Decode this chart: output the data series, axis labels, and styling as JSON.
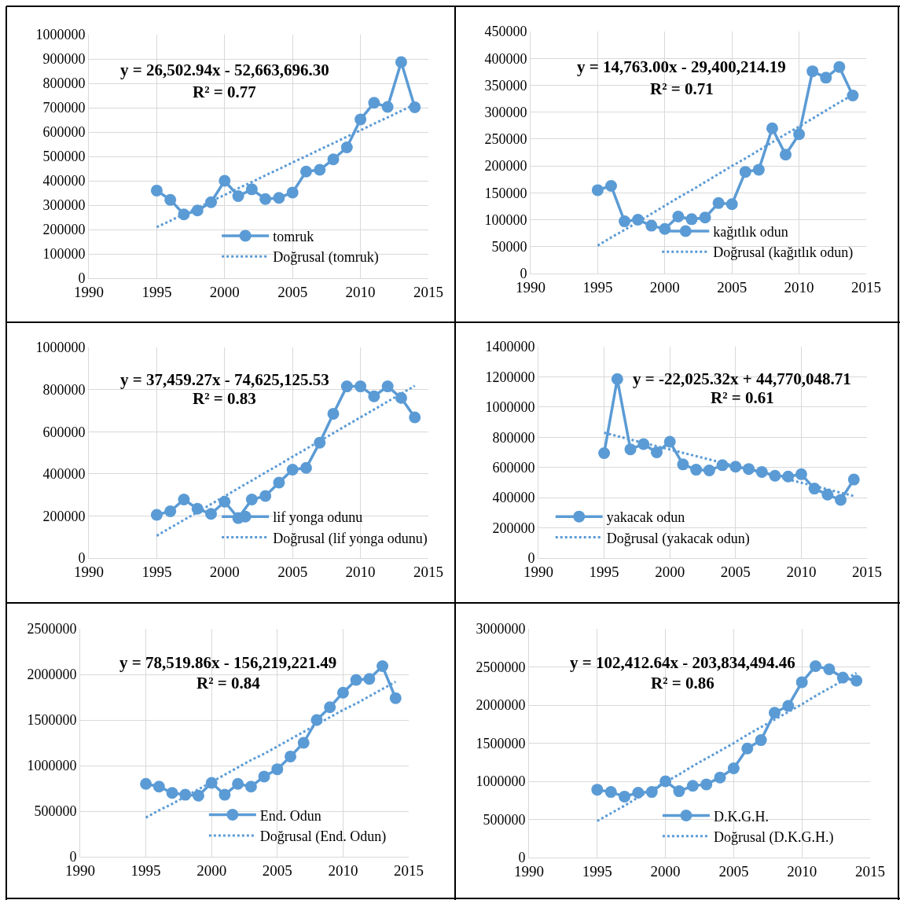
{
  "chart_data": [
    {
      "type": "line",
      "x": [
        1995,
        1996,
        1997,
        1998,
        1999,
        2000,
        2001,
        2002,
        2003,
        2004,
        2005,
        2006,
        2007,
        2008,
        2009,
        2010,
        2011,
        2012,
        2013,
        2014
      ],
      "xlim": [
        1990,
        2015
      ],
      "xticks": [
        1990,
        1995,
        2000,
        2005,
        2010,
        2015
      ],
      "ylim": [
        0,
        1000000
      ],
      "yticks": [
        0,
        100000,
        200000,
        300000,
        400000,
        500000,
        600000,
        700000,
        800000,
        900000,
        1000000
      ],
      "grid": true,
      "legend": "bottom right",
      "annotations": [
        "y = 26,502.94x - 52,663,696.30",
        "R² = 0.77"
      ],
      "series": [
        {
          "name": "tomruk",
          "color": "#5b9bd5",
          "marker": "circle",
          "line_style": "solid",
          "values": [
            360000,
            322000,
            262000,
            278000,
            312000,
            400000,
            337000,
            365000,
            325000,
            330000,
            352000,
            438000,
            445000,
            488000,
            537000,
            652000,
            720000,
            703000,
            887000,
            702000
          ]
        },
        {
          "name": "Doğrusal (tomruk)",
          "color": "#5b9bd5",
          "marker": "none",
          "line_style": "dotted",
          "values": [
            210000,
            236000,
            263000,
            289000,
            316000,
            342000,
            369000,
            395000,
            422000,
            448000,
            475000,
            501000,
            528000,
            554000,
            581000,
            607000,
            634000,
            660000,
            687000,
            713000
          ]
        }
      ]
    },
    {
      "type": "line",
      "x": [
        1995,
        1996,
        1997,
        1998,
        1999,
        2000,
        2001,
        2002,
        2003,
        2004,
        2005,
        2006,
        2007,
        2008,
        2009,
        2010,
        2011,
        2012,
        2013,
        2014
      ],
      "xlim": [
        1990,
        2015
      ],
      "xticks": [
        1990,
        1995,
        2000,
        2005,
        2010,
        2015
      ],
      "ylim": [
        0,
        450000
      ],
      "yticks": [
        0,
        50000,
        100000,
        150000,
        200000,
        250000,
        300000,
        350000,
        400000,
        450000
      ],
      "grid": true,
      "legend": "bottom right",
      "annotations": [
        "y = 14,763.00x - 29,400,214.19",
        "R² = 0.71"
      ],
      "series": [
        {
          "name": "kağıtlık odun",
          "color": "#5b9bd5",
          "marker": "circle",
          "line_style": "solid",
          "values": [
            155000,
            163000,
            97000,
            100000,
            89000,
            83000,
            106000,
            101000,
            104000,
            131000,
            129000,
            189000,
            193000,
            270000,
            221000,
            259000,
            376000,
            364000,
            384000,
            331000
          ]
        },
        {
          "name": "Doğrusal (kağıtlık odun)",
          "color": "#5b9bd5",
          "marker": "none",
          "line_style": "dotted",
          "values": [
            52000,
            67000,
            81000,
            96000,
            111000,
            126000,
            141000,
            155000,
            170000,
            185000,
            200000,
            214000,
            229000,
            244000,
            259000,
            273000,
            288000,
            303000,
            318000,
            332000
          ]
        }
      ]
    },
    {
      "type": "line",
      "x": [
        1995,
        1996,
        1997,
        1998,
        1999,
        2000,
        2001,
        2002,
        2003,
        2004,
        2005,
        2006,
        2007,
        2008,
        2009,
        2010,
        2011,
        2012,
        2013,
        2014
      ],
      "xlim": [
        1990,
        2015
      ],
      "xticks": [
        1990,
        1995,
        2000,
        2005,
        2010,
        2015
      ],
      "ylim": [
        0,
        1000000
      ],
      "yticks": [
        0,
        200000,
        400000,
        600000,
        800000,
        1000000
      ],
      "grid": true,
      "legend": "bottom right",
      "annotations": [
        "y = 37,459.27x - 74,625,125.53",
        "R² = 0.83"
      ],
      "series": [
        {
          "name": "lif yonga odunu",
          "color": "#5b9bd5",
          "marker": "circle",
          "line_style": "solid",
          "values": [
            205000,
            222000,
            278000,
            234000,
            210000,
            268000,
            190000,
            278000,
            295000,
            358000,
            420000,
            428000,
            548000,
            685000,
            815000,
            815000,
            768000,
            815000,
            760000,
            668000
          ]
        },
        {
          "name": "Doğrusal (lif yonga odunu)",
          "color": "#5b9bd5",
          "marker": "none",
          "line_style": "dotted",
          "values": [
            106000,
            144000,
            181000,
            218000,
            256000,
            293000,
            331000,
            368000,
            406000,
            443000,
            481000,
            518000,
            556000,
            593000,
            631000,
            668000,
            705000,
            743000,
            780000,
            818000
          ]
        }
      ]
    },
    {
      "type": "line",
      "x": [
        1995,
        1996,
        1997,
        1998,
        1999,
        2000,
        2001,
        2002,
        2003,
        2004,
        2005,
        2006,
        2007,
        2008,
        2009,
        2010,
        2011,
        2012,
        2013,
        2014
      ],
      "xlim": [
        1990,
        2015
      ],
      "xticks": [
        1990,
        1995,
        2000,
        2005,
        2010,
        2015
      ],
      "ylim": [
        0,
        1400000
      ],
      "yticks": [
        0,
        200000,
        400000,
        600000,
        800000,
        1000000,
        1200000,
        1400000
      ],
      "grid": true,
      "legend": "bottom left",
      "annotations": [
        "y = -22,025.32x + 44,770,048.71",
        "R² = 0.61"
      ],
      "series": [
        {
          "name": "yakacak odun",
          "color": "#5b9bd5",
          "marker": "circle",
          "line_style": "solid",
          "values": [
            695000,
            1185000,
            720000,
            755000,
            700000,
            770000,
            620000,
            585000,
            580000,
            615000,
            605000,
            590000,
            570000,
            545000,
            540000,
            555000,
            460000,
            420000,
            385000,
            520000
          ]
        },
        {
          "name": "Doğrusal (yakacak odun)",
          "color": "#5b9bd5",
          "marker": "none",
          "line_style": "dotted",
          "values": [
            830000,
            808000,
            785000,
            763000,
            741000,
            719000,
            697000,
            675000,
            653000,
            631000,
            609000,
            587000,
            565000,
            543000,
            521000,
            499000,
            477000,
            455000,
            433000,
            411000
          ]
        }
      ]
    },
    {
      "type": "line",
      "x": [
        1995,
        1996,
        1997,
        1998,
        1999,
        2000,
        2001,
        2002,
        2003,
        2004,
        2005,
        2006,
        2007,
        2008,
        2009,
        2010,
        2011,
        2012,
        2013,
        2014
      ],
      "xlim": [
        1990,
        2015
      ],
      "xticks": [
        1990,
        1995,
        2000,
        2005,
        2010,
        2015
      ],
      "ylim": [
        0,
        2500000
      ],
      "yticks": [
        0,
        500000,
        1000000,
        1500000,
        2000000,
        2500000
      ],
      "grid": true,
      "legend": "bottom right",
      "annotations": [
        "y = 78,519.86x - 156,219,221.49",
        "R² = 0.84"
      ],
      "series": [
        {
          "name": "End. Odun",
          "color": "#5b9bd5",
          "marker": "circle",
          "line_style": "solid",
          "values": [
            800000,
            770000,
            700000,
            680000,
            670000,
            810000,
            680000,
            800000,
            770000,
            880000,
            960000,
            1100000,
            1250000,
            1500000,
            1640000,
            1800000,
            1940000,
            1950000,
            2090000,
            1740000
          ]
        },
        {
          "name": "Doğrusal (End. Odun)",
          "color": "#5b9bd5",
          "marker": "none",
          "line_style": "dotted",
          "values": [
            430000,
            510000,
            580000,
            660000,
            740000,
            820000,
            900000,
            980000,
            1060000,
            1130000,
            1210000,
            1290000,
            1370000,
            1450000,
            1530000,
            1610000,
            1680000,
            1760000,
            1840000,
            1920000
          ]
        }
      ]
    },
    {
      "type": "line",
      "x": [
        1995,
        1996,
        1997,
        1998,
        1999,
        2000,
        2001,
        2002,
        2003,
        2004,
        2005,
        2006,
        2007,
        2008,
        2009,
        2010,
        2011,
        2012,
        2013,
        2014
      ],
      "xlim": [
        1990,
        2015
      ],
      "xticks": [
        1990,
        1995,
        2000,
        2005,
        2010,
        2015
      ],
      "ylim": [
        0,
        3000000
      ],
      "yticks": [
        0,
        500000,
        1000000,
        1500000,
        2000000,
        2500000,
        3000000
      ],
      "grid": true,
      "legend": "bottom right",
      "annotations": [
        "y = 102,412.64x - 203,834,494.46",
        "R² = 0.86"
      ],
      "series": [
        {
          "name": "D.K.G.H.",
          "color": "#5b9bd5",
          "marker": "circle",
          "line_style": "solid",
          "values": [
            890000,
            860000,
            800000,
            850000,
            860000,
            1000000,
            870000,
            940000,
            960000,
            1050000,
            1170000,
            1430000,
            1540000,
            1900000,
            1990000,
            2300000,
            2510000,
            2470000,
            2360000,
            2320000
          ]
        },
        {
          "name": "Doğrusal (D.K.G.H.)",
          "color": "#5b9bd5",
          "marker": "none",
          "line_style": "dotted",
          "values": [
            480000,
            580000,
            680000,
            790000,
            890000,
            990000,
            1090000,
            1200000,
            1300000,
            1400000,
            1500000,
            1610000,
            1710000,
            1810000,
            1910000,
            2010000,
            2120000,
            2220000,
            2320000,
            2420000
          ]
        }
      ]
    }
  ]
}
